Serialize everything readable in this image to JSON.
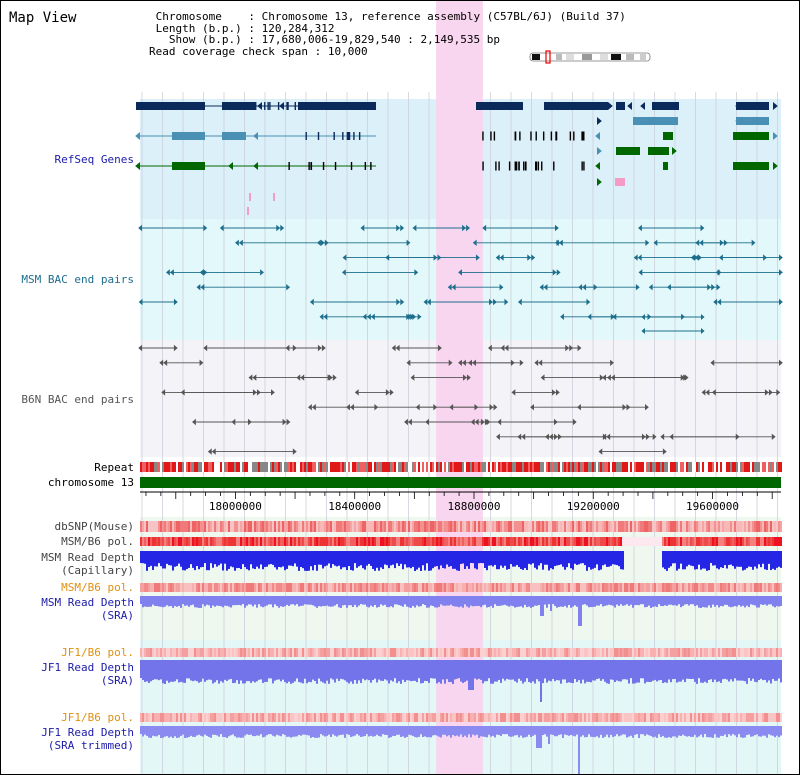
{
  "title": "Map View",
  "info": {
    "chromosome_label": "Chromosome",
    "chromosome_value": "Chromosome 13, reference assembly (C57BL/6J) (Build 37)",
    "length_label": "Length (b.p.)",
    "length_value": "120,284,312",
    "show_label": "Show (b.p.)",
    "show_value": "17,680,006-19,829,540 : 2,149,535 bp",
    "coverage_label": "Read coverage check span",
    "coverage_value": "10,000"
  },
  "tracks": {
    "refseq": "RefSeq Genes",
    "msm_bac": "MSM BAC end pairs",
    "b6n_bac": "B6N BAC end pairs",
    "repeat": "Repeat",
    "chromosome": "chromosome 13",
    "dbsnp": "dbSNP(Mouse)",
    "msm_b6_pol_1": "MSM/B6 pol.",
    "msm_depth_cap_1": "MSM Read Depth",
    "msm_depth_cap_2": "(Capillary)",
    "msm_b6_pol_2": "MSM/B6 pol.",
    "msm_depth_sra_1": "MSM Read Depth",
    "msm_depth_sra_2": "(SRA)",
    "jf1_b6_pol_1": "JF1/B6 pol.",
    "jf1_depth_sra_1": "JF1 Read Depth",
    "jf1_depth_sra_2": "(SRA)",
    "jf1_b6_pol_2": "JF1/B6 pol.",
    "jf1_depth_trim_1": "JF1 Read Depth",
    "jf1_depth_trim_2": "(SRA trimmed)"
  },
  "axis": {
    "ticks": [
      "18000000",
      "18400000",
      "18800000",
      "19200000",
      "19600000"
    ],
    "tick_values": [
      18000000,
      18400000,
      18800000,
      19200000,
      19600000
    ],
    "range": [
      17680006,
      19829540
    ]
  },
  "highlight_range": [
    18673000,
    18830000
  ],
  "colors": {
    "refseq_dark": "#0a2a5c",
    "refseq_mid": "#4a8fb4",
    "refseq_green": "#006600",
    "refseq_bg": "#dcf0fa",
    "msm_bac": "#1d6e8c",
    "msm_bg": "#e3f8fa",
    "b6n_bac": "#555555",
    "b6n_bg": "#f4f4f8",
    "highlight": "#f9d4ef",
    "chromosome_bar": "#006600",
    "label_blue": "#1b1ba8",
    "label_orange": "#e09010",
    "label_gray": "#444444"
  }
}
